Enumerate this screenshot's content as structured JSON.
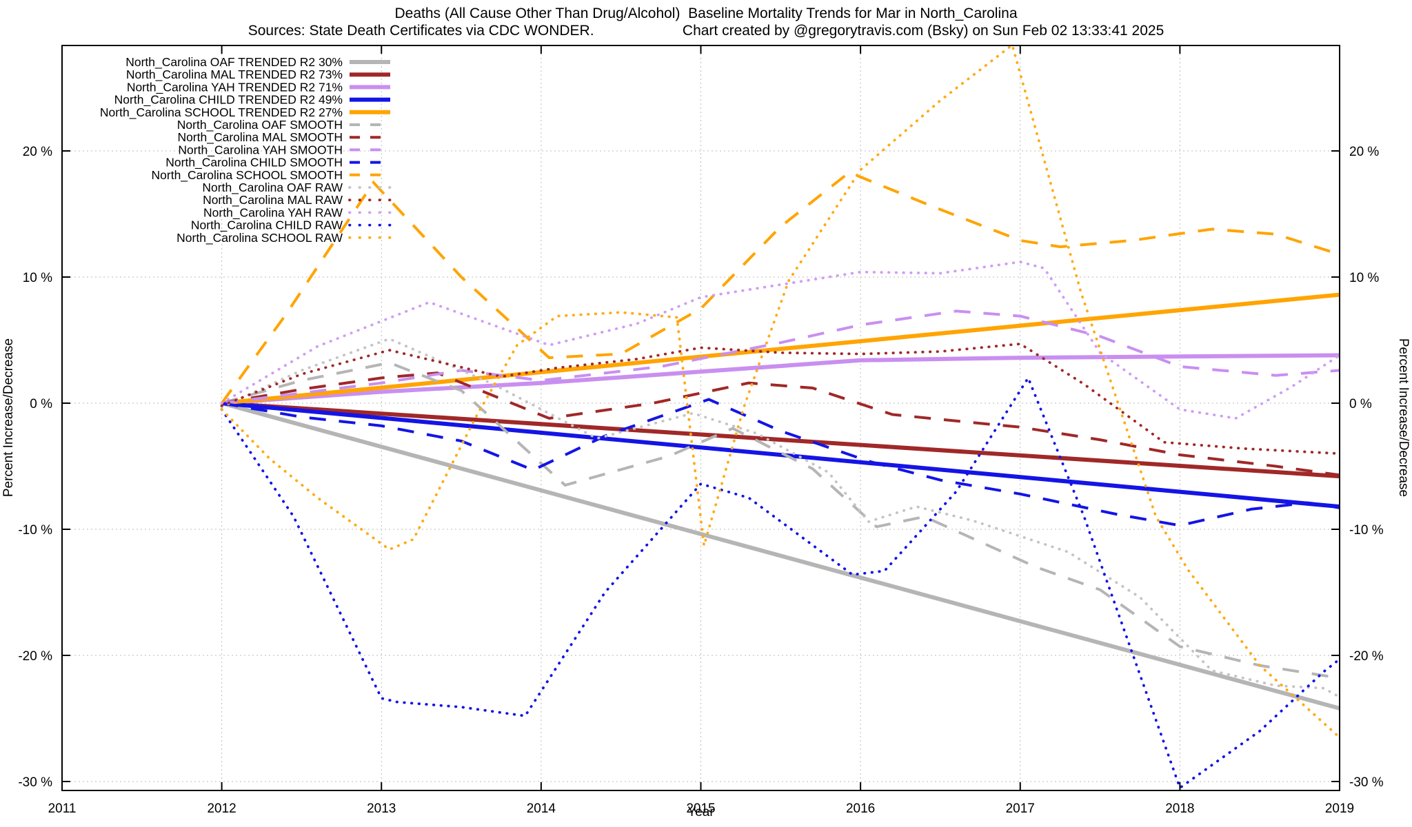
{
  "title": "Deaths (All Cause Other Than Drug/Alcohol)  Baseline Mortality Trends for Mar in North_Carolina",
  "subtitle": "Sources: State Death Certificates via CDC WONDER.                      Chart created by @gregorytravis.com (Bsky) on Sun Feb 02 13:33:41 2025",
  "chart_data": {
    "type": "line",
    "title": "Deaths (All Cause Other Than Drug/Alcohol)  Baseline Mortality Trends for Mar in North_Carolina",
    "xlabel": "Year",
    "ylabel": "Percent Increase/Decrease",
    "y2label": "Percent Increase/Decrease",
    "xlim": [
      2011,
      2019
    ],
    "ylim": [
      -30.7,
      28.4
    ],
    "grid": true,
    "legend_position": "top-left-inside",
    "grid_color": "#bbbbbb",
    "border_color": "#000000",
    "xticks": [
      2011,
      2012,
      2013,
      2014,
      2015,
      2016,
      2017,
      2018,
      2019
    ],
    "xtick_labels": [
      "2011",
      "2012",
      "2013",
      "2014",
      "2015",
      "2016",
      "2017",
      "2018",
      "2019"
    ],
    "ytick_values": [
      20,
      10,
      0,
      -10,
      -20,
      -30
    ],
    "ytick_labels": [
      "20 %",
      "10 %",
      "0 %",
      "-10 %",
      "-20 %",
      "-30 %"
    ],
    "series": [
      {
        "name": "oaf-trended",
        "legend_label": "North_Carolina OAF TRENDED R2  30%",
        "color": "#b5b5b5",
        "style": "solid",
        "x": [
          2012,
          2019
        ],
        "y": [
          0,
          -24.2
        ]
      },
      {
        "name": "mal-trended",
        "legend_label": "North_Carolina MAL TRENDED R2  73%",
        "color": "#a02828",
        "style": "solid",
        "x": [
          2012,
          2019
        ],
        "y": [
          0,
          -5.8
        ]
      },
      {
        "name": "yah-trended",
        "legend_label": "North_Carolina YAH TRENDED R2  71%",
        "color": "#c98ff0",
        "style": "solid",
        "x": [
          2012,
          2013,
          2014,
          2015,
          2016,
          2017,
          2018,
          2019
        ],
        "y": [
          0,
          0.9,
          1.6,
          2.5,
          3.4,
          3.6,
          3.7,
          3.8
        ]
      },
      {
        "name": "child-trended",
        "legend_label": "North_Carolina CHILD TRENDED R2  49%",
        "color": "#1414e6",
        "style": "solid",
        "x": [
          2012,
          2019
        ],
        "y": [
          0,
          -8.2
        ]
      },
      {
        "name": "school-trended",
        "legend_label": "North_Carolina SCHOOL TRENDED R2  27%",
        "color": "#ffa400",
        "style": "solid",
        "x": [
          2012,
          2019
        ],
        "y": [
          0,
          8.6
        ]
      },
      {
        "name": "oaf-smooth",
        "legend_label": "North_Carolina OAF SMOOTH",
        "color": "#b5b5b5",
        "style": "dashed",
        "x": [
          2012,
          2012.5,
          2013.05,
          2013.5,
          2014.15,
          2014.8,
          2015.2,
          2015.7,
          2016.1,
          2016.4,
          2016.75,
          2017.1,
          2017.5,
          2018,
          2018.5,
          2019
        ],
        "y": [
          0,
          1.8,
          3.2,
          1.0,
          -6.5,
          -4.2,
          -2.0,
          -5.2,
          -9.8,
          -9.0,
          -11.0,
          -13.0,
          -14.8,
          -19.3,
          -20.8,
          -21.8
        ]
      },
      {
        "name": "mal-smooth",
        "legend_label": "North_Carolina MAL SMOOTH",
        "color": "#a02828",
        "style": "dashed",
        "x": [
          2012,
          2012.5,
          2013,
          2013.35,
          2014.05,
          2014.7,
          2015.3,
          2015.7,
          2016.2,
          2016.75,
          2017,
          2017.5,
          2018,
          2018.6,
          2019
        ],
        "y": [
          0,
          1.1,
          2.0,
          2.4,
          -1.2,
          0.0,
          1.6,
          1.2,
          -0.9,
          -1.6,
          -1.9,
          -2.9,
          -4.1,
          -5.0,
          -5.7
        ]
      },
      {
        "name": "yah-smooth",
        "legend_label": "North_Carolina YAH SMOOTH",
        "color": "#c98ff0",
        "style": "dashed",
        "x": [
          2012,
          2013,
          2013.5,
          2014,
          2014.75,
          2015.5,
          2016,
          2016.6,
          2017,
          2017.5,
          2018,
          2018.6,
          2019
        ],
        "y": [
          0,
          1.6,
          2.6,
          1.8,
          2.9,
          4.8,
          6.2,
          7.3,
          6.9,
          5.3,
          2.9,
          2.2,
          2.6
        ]
      },
      {
        "name": "child-smooth",
        "legend_label": "North_Carolina CHILD SMOOTH",
        "color": "#1414e6",
        "style": "dashed",
        "x": [
          2012,
          2012.5,
          2013,
          2013.5,
          2013.95,
          2014.4,
          2015.05,
          2015.5,
          2016.05,
          2016.5,
          2017,
          2017.6,
          2018,
          2018.45,
          2018.8,
          2019
        ],
        "y": [
          0,
          -1.1,
          -1.8,
          -3.0,
          -5.3,
          -2.6,
          0.3,
          -2.2,
          -4.6,
          -6.1,
          -7.2,
          -8.8,
          -9.7,
          -8.4,
          -7.9,
          -8.3
        ]
      },
      {
        "name": "school-smooth",
        "legend_label": "North_Carolina SCHOOL SMOOTH",
        "color": "#ffa400",
        "style": "dashed",
        "x": [
          2012,
          2012.4,
          2012.95,
          2013.5,
          2014.05,
          2014.5,
          2015,
          2015.5,
          2015.93,
          2016.45,
          2017,
          2017.25,
          2017.7,
          2018.2,
          2018.6,
          2019
        ],
        "y": [
          0,
          7,
          17.5,
          10,
          3.6,
          3.9,
          7.5,
          14,
          18.3,
          15.6,
          12.9,
          12.4,
          12.9,
          13.8,
          13.4,
          11.8
        ]
      },
      {
        "name": "oaf-raw",
        "legend_label": "North_Carolina OAF RAW",
        "color": "#c4c4c4",
        "style": "dotted",
        "x": [
          2012,
          2012.5,
          2013.05,
          2013.7,
          2014.35,
          2014.95,
          2015.35,
          2015.8,
          2016.05,
          2016.35,
          2016.7,
          2017.3,
          2017.75,
          2018.2,
          2018.6,
          2018.9,
          2019
        ],
        "y": [
          -0.3,
          2.6,
          5.1,
          1.5,
          -2.8,
          -0.8,
          -2.4,
          -5.5,
          -9.4,
          -8.2,
          -9.3,
          -11.8,
          -15.4,
          -21.2,
          -22.4,
          -22.6,
          -23.3
        ]
      },
      {
        "name": "mal-raw",
        "legend_label": "North_Carolina MAL RAW",
        "color": "#a02828",
        "style": "dotted",
        "x": [
          2012,
          2012.5,
          2013.05,
          2013.75,
          2014.1,
          2014.6,
          2015,
          2015.5,
          2016,
          2016.5,
          2017,
          2017.4,
          2017.9,
          2018.4,
          2019
        ],
        "y": [
          -0.2,
          2.3,
          4.2,
          2.1,
          2.8,
          3.5,
          4.4,
          4.0,
          3.9,
          4.1,
          4.7,
          1.5,
          -3.1,
          -3.6,
          -4.0
        ]
      },
      {
        "name": "yah-raw",
        "legend_label": "North_Carolina YAH RAW",
        "color": "#cf9df5",
        "style": "dotted",
        "x": [
          2012,
          2012.6,
          2013.3,
          2014.05,
          2014.6,
          2015,
          2015.5,
          2016,
          2016.5,
          2017,
          2017.15,
          2017.5,
          2018,
          2018.35,
          2018.7,
          2019
        ],
        "y": [
          0,
          4.5,
          8.0,
          4.6,
          6.3,
          8.4,
          9.4,
          10.4,
          10.3,
          11.2,
          10.7,
          4.0,
          -0.5,
          -1.2,
          1.3,
          3.8
        ]
      },
      {
        "name": "child-raw",
        "legend_label": "North_Carolina CHILD RAW",
        "color": "#1414e6",
        "style": "dotted",
        "x": [
          2012,
          2012.45,
          2013.0,
          2013.1,
          2013.5,
          2013.9,
          2014.4,
          2015,
          2015.3,
          2015.95,
          2016.15,
          2016.6,
          2017.05,
          2017.4,
          2018,
          2018.5,
          2018.9,
          2019
        ],
        "y": [
          -0.5,
          -9,
          -23.4,
          -23.7,
          -24.1,
          -24.8,
          -15,
          -6.4,
          -7.5,
          -13.6,
          -13.3,
          -7,
          2.0,
          -9,
          -30.5,
          -26,
          -21.3,
          -20.3
        ]
      },
      {
        "name": "school-raw",
        "legend_label": "North_Carolina SCHOOL RAW",
        "color": "#ffab14",
        "style": "dotted",
        "x": [
          2012,
          2012.3,
          2012.6,
          2013.05,
          2013.2,
          2013.6,
          2013.85,
          2014.1,
          2014.5,
          2014.85,
          2015.02,
          2015.27,
          2015.55,
          2016,
          2016.5,
          2016.95,
          2017.38,
          2017.85,
          2018.05,
          2018.5,
          2019
        ],
        "y": [
          -0.5,
          -4.4,
          -7.5,
          -11.6,
          -10.8,
          -0.9,
          4.6,
          6.9,
          7.2,
          6.8,
          -11.3,
          -0.3,
          9.7,
          18.5,
          24,
          28.4,
          8.8,
          -9,
          -13.2,
          -20.8,
          -26.5
        ]
      }
    ]
  }
}
